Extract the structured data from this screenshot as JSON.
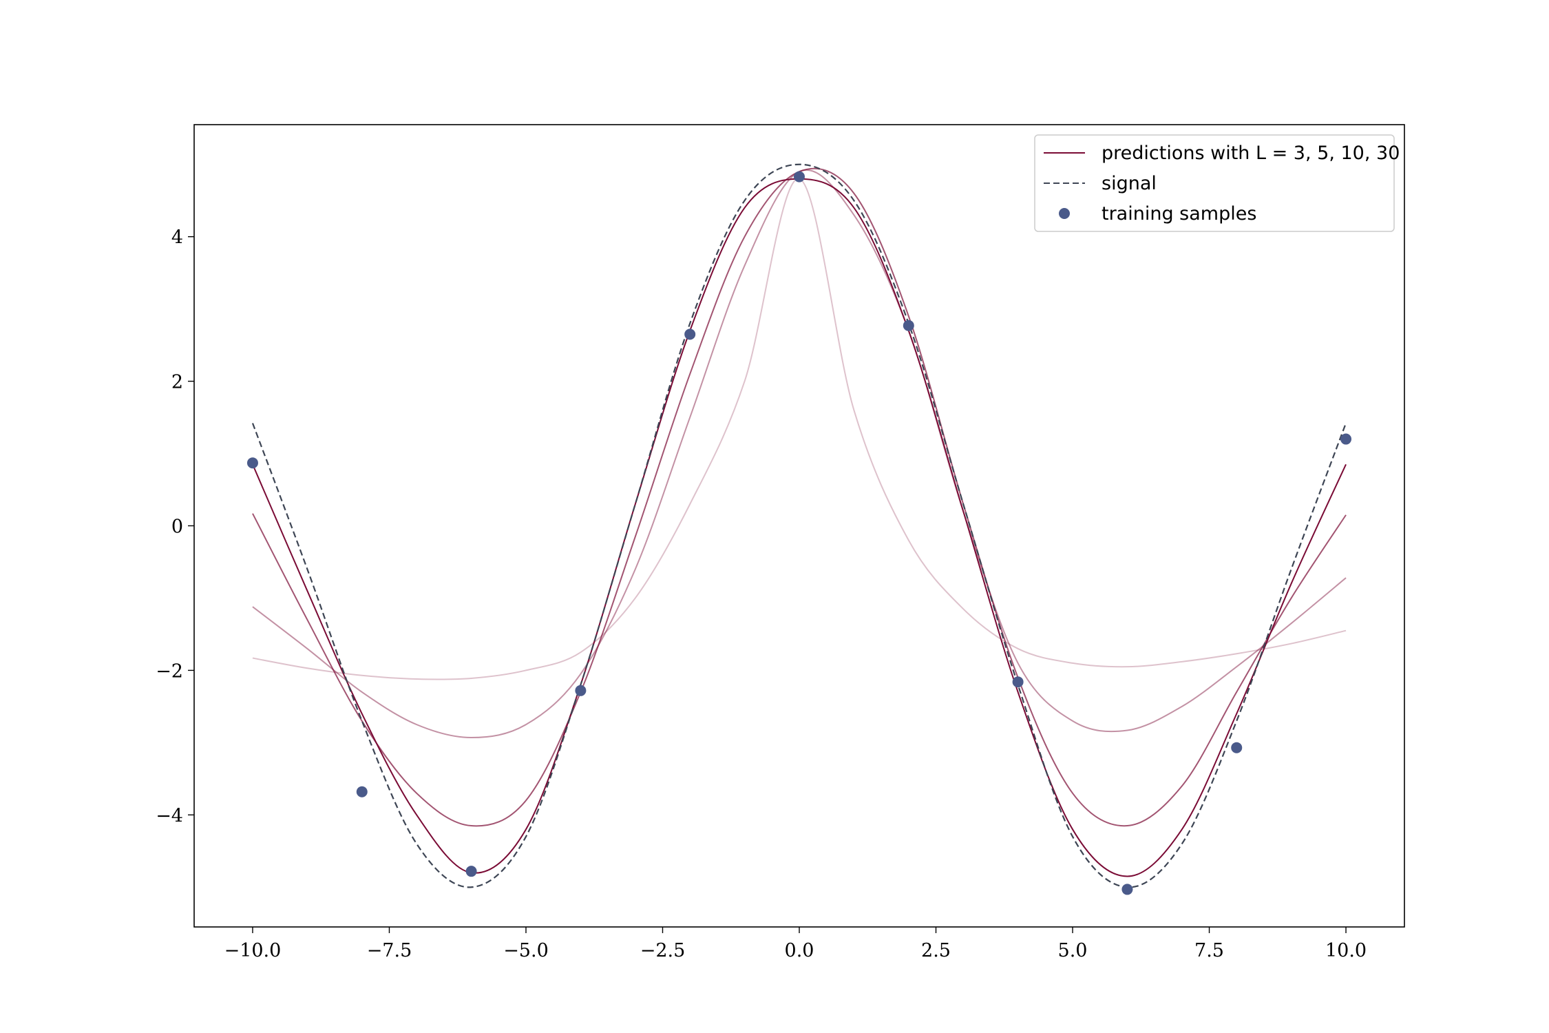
{
  "chart_data": {
    "type": "line",
    "xlim": [
      -11.07,
      11.07
    ],
    "ylim": [
      -5.55,
      5.55
    ],
    "xticks": [
      -10.0,
      -7.5,
      -5.0,
      -2.5,
      0.0,
      2.5,
      5.0,
      7.5,
      10.0
    ],
    "xtick_labels": [
      "−10.0",
      "−7.5",
      "−5.0",
      "−2.5",
      "0.0",
      "2.5",
      "5.0",
      "7.5",
      "10.0"
    ],
    "yticks": [
      -4,
      -2,
      0,
      2,
      4
    ],
    "ytick_labels": [
      "−4",
      "−2",
      "0",
      "2",
      "4"
    ],
    "grid": false,
    "legend_position": "top-right",
    "legend": {
      "predictions_label": "predictions with L = 3, 5, 10, 30",
      "signal_label": "signal",
      "samples_label": "training samples"
    },
    "colors": {
      "prediction": "#7a0b35",
      "signal": "#3d4554",
      "samples": "#4a5a8a"
    },
    "series": [
      {
        "L": 3,
        "opacity": 0.25,
        "x": [
          -10,
          -9,
          -8,
          -7,
          -6,
          -5,
          -4,
          -3,
          -2,
          -1,
          0,
          1,
          2,
          3,
          4,
          5,
          6,
          7,
          8,
          9,
          10
        ],
        "y": [
          -1.83,
          -1.97,
          -2.07,
          -2.12,
          -2.11,
          -2.0,
          -1.75,
          -1.0,
          0.3,
          2.0,
          4.8,
          1.6,
          -0.2,
          -1.15,
          -1.7,
          -1.9,
          -1.95,
          -1.88,
          -1.77,
          -1.63,
          -1.45
        ]
      },
      {
        "L": 5,
        "opacity": 0.45,
        "x": [
          -10,
          -9,
          -8,
          -7,
          -6,
          -5,
          -4,
          -3,
          -2,
          -1,
          0,
          1,
          2,
          3,
          4,
          5,
          6,
          7,
          8,
          9,
          10
        ],
        "y": [
          -1.12,
          -1.7,
          -2.3,
          -2.75,
          -2.93,
          -2.75,
          -2.05,
          -0.6,
          1.5,
          3.6,
          4.9,
          4.3,
          2.7,
          0.2,
          -1.9,
          -2.7,
          -2.83,
          -2.5,
          -1.95,
          -1.35,
          -0.72
        ]
      },
      {
        "L": 10,
        "opacity": 0.7,
        "x": [
          -10,
          -9,
          -8,
          -7,
          -6,
          -5,
          -4,
          -3,
          -2,
          -1,
          0,
          1,
          2,
          3,
          4,
          5,
          6,
          7,
          8,
          9,
          10
        ],
        "y": [
          0.17,
          -1.3,
          -2.7,
          -3.7,
          -4.15,
          -3.8,
          -2.3,
          -0.15,
          2.1,
          4.0,
          4.9,
          4.6,
          2.9,
          0.3,
          -2.1,
          -3.7,
          -4.15,
          -3.6,
          -2.3,
          -1.0,
          0.15
        ]
      },
      {
        "L": 30,
        "opacity": 1.0,
        "x": [
          -10,
          -9,
          -8,
          -7,
          -6,
          -5,
          -4,
          -3,
          -2,
          -1,
          0,
          1,
          2,
          3,
          4,
          5,
          6,
          7,
          8,
          9,
          10
        ],
        "y": [
          0.85,
          -0.9,
          -2.6,
          -4.0,
          -4.8,
          -4.2,
          -2.2,
          0.3,
          2.7,
          4.4,
          4.8,
          4.4,
          2.7,
          0.2,
          -2.3,
          -4.2,
          -4.85,
          -4.2,
          -2.6,
          -0.8,
          0.85
        ]
      }
    ],
    "signal": {
      "x": [
        -10,
        -9,
        -8,
        -7,
        -6,
        -5,
        -4,
        -3,
        -2,
        -1,
        0,
        1,
        2,
        3,
        4,
        5,
        6,
        7,
        8,
        9,
        10
      ],
      "y": [
        1.42,
        -0.6,
        -2.7,
        -4.4,
        -5.0,
        -4.3,
        -2.2,
        0.3,
        2.8,
        4.5,
        5.0,
        4.5,
        2.8,
        0.3,
        -2.2,
        -4.3,
        -5.0,
        -4.4,
        -2.7,
        -0.6,
        1.42
      ]
    },
    "samples": {
      "x": [
        -10,
        -8,
        -6,
        -4,
        -2,
        0,
        2,
        4,
        6,
        8,
        10
      ],
      "y": [
        0.87,
        -3.68,
        -4.78,
        -2.28,
        2.65,
        4.83,
        2.77,
        -2.16,
        -5.03,
        -3.07,
        1.2
      ]
    }
  }
}
